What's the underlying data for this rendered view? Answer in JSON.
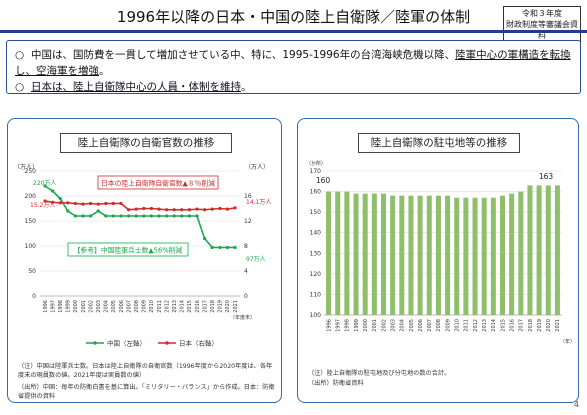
{
  "page": {
    "title": "1996年以降の日本・中国の陸上自衛隊／陸軍の体制",
    "badge_line1": "令和３年度",
    "badge_line2": "財政制度等審議会資料",
    "page_number": "4",
    "accent_color": "#1f3f8a"
  },
  "bullets": [
    {
      "symbol": "○",
      "pre": "中国は、国防費を一貫して増加させている中、特に、1995-1996年の台湾海峡危機以降、",
      "underlined": "陸軍中心の軍構造を転換し、空海軍を増強",
      "post": "。"
    },
    {
      "symbol": "○",
      "pre": "",
      "underlined": "日本は、陸上自衛隊中心の人員・体制を維持",
      "post": "。"
    }
  ],
  "left_panel": {
    "title": "陸上自衛隊の自衛官数の推移",
    "left_unit": "（万人）",
    "right_unit": "（万人）",
    "year_unit": "（年度末）",
    "japan_box": "日本の陸上自衛隊自衛官数▲８％削減",
    "china_box": "【参考】中国陸軍兵士数▲56%削減",
    "label_china_start": "220万人",
    "label_japan_start": "15.2万人",
    "label_japan_end": "14.1万人",
    "label_china_end": "97万人",
    "legend_china": "中国（左軸）",
    "legend_japan": "日本（右軸）",
    "note1": "（注）中国は陸軍兵士数。日本は陸上自衛隊の自衛官数（1996年度から2020年度は、各年度末の現員数の値。2021年度は実員数の値）",
    "note2": "（出所）中国：毎年の防衛白書を基に算出。「ミリタリー・バランス」から作成。日本：防衛省提供の資料",
    "china_color": "#1aa84a",
    "japan_color": "#d22a2a"
  },
  "right_panel": {
    "title": "陸上自衛隊の駐屯地等の推移",
    "unit": "（か所）",
    "year_unit": "（年）",
    "label_start": "160",
    "label_end": "163",
    "note1": "（注）陸上自衛隊の駐屯地及び分屯地の数の合計。",
    "note2": "（出所）防衛省資料",
    "bar_color": "#8fbf6a"
  },
  "chart_data": [
    {
      "type": "line",
      "title": "陸上自衛隊の自衛官数の推移",
      "x": [
        "1996",
        "1997",
        "1998",
        "1999",
        "2000",
        "2001",
        "2002",
        "2003",
        "2004",
        "2005",
        "2006",
        "2007",
        "2008",
        "2009",
        "2010",
        "2011",
        "2012",
        "2013",
        "2014",
        "2015",
        "2016",
        "2017",
        "2018",
        "2019",
        "2020",
        "2021"
      ],
      "series": [
        {
          "name": "中国（左軸）",
          "axis": "left",
          "values": [
            220,
            210,
            195,
            170,
            160,
            160,
            160,
            170,
            160,
            160,
            160,
            160,
            160,
            160,
            160,
            160,
            160,
            160,
            160,
            160,
            160,
            115,
            97,
            97,
            97,
            97
          ]
        },
        {
          "name": "日本（右軸）",
          "axis": "right",
          "values": [
            15.2,
            15.0,
            14.9,
            14.9,
            14.8,
            14.7,
            14.8,
            14.7,
            14.8,
            14.8,
            14.8,
            13.8,
            13.9,
            14.0,
            14.0,
            13.9,
            13.8,
            13.8,
            13.8,
            13.8,
            13.9,
            13.8,
            13.9,
            14.0,
            13.9,
            14.1
          ]
        }
      ],
      "yleft_lim": [
        0,
        250
      ],
      "yleft_ticks": [
        0,
        50,
        100,
        150,
        200,
        250
      ],
      "yright_lim": [
        0,
        20
      ],
      "yright_ticks": [
        0,
        4,
        8,
        12,
        16
      ],
      "ylabel_left": "（万人）",
      "ylabel_right": "（万人）",
      "xlabel": "（年度末）",
      "legend": "bottom"
    },
    {
      "type": "bar",
      "title": "陸上自衛隊の駐屯地等の推移",
      "categories": [
        "1996",
        "1997",
        "1998",
        "1999",
        "2000",
        "2001",
        "2002",
        "2003",
        "2004",
        "2005",
        "2006",
        "2007",
        "2008",
        "2009",
        "2010",
        "2011",
        "2012",
        "2013",
        "2014",
        "2015",
        "2016",
        "2017",
        "2018",
        "2019",
        "2020",
        "2021"
      ],
      "values": [
        160,
        160,
        160,
        159,
        159,
        159,
        159,
        158,
        158,
        158,
        158,
        158,
        158,
        158,
        157,
        157,
        157,
        157,
        157,
        158,
        159,
        160,
        163,
        163,
        163,
        163
      ],
      "ylim": [
        100,
        170
      ],
      "yticks": [
        100,
        110,
        120,
        130,
        140,
        150,
        160,
        170
      ],
      "ylabel": "（か所）",
      "xlabel": "（年）"
    }
  ]
}
